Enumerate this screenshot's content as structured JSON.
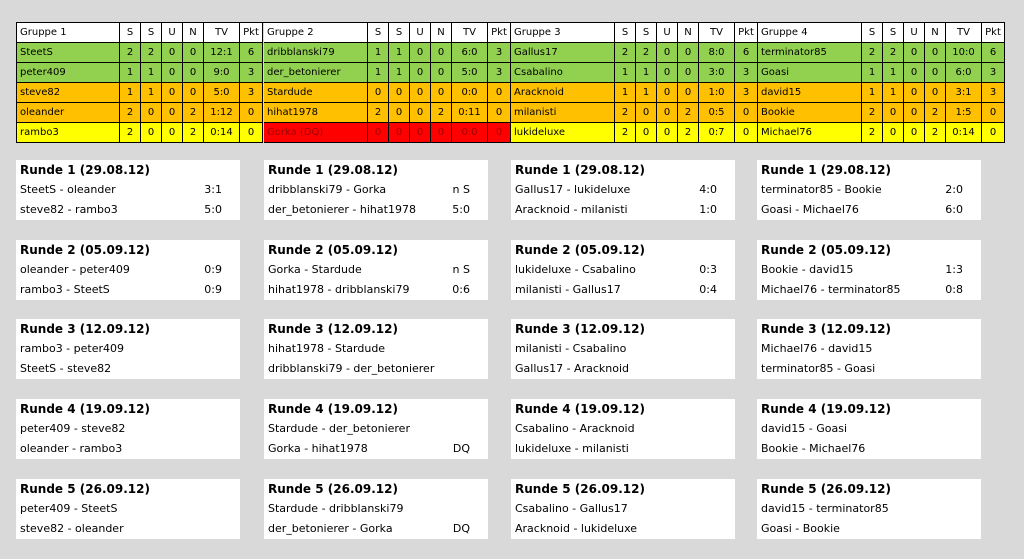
{
  "groups": [
    {
      "header": [
        "Gruppe 1",
        "S",
        "S",
        "U",
        "N",
        "TV",
        "Pkt"
      ],
      "rows": [
        {
          "color": "#92d050",
          "cells": [
            "SteetS",
            2,
            2,
            0,
            0,
            "12:1",
            6
          ]
        },
        {
          "color": "#92d050",
          "cells": [
            "peter409",
            1,
            1,
            0,
            0,
            "9:0",
            3
          ]
        },
        {
          "color": "#ffc000",
          "cells": [
            "steve82",
            1,
            1,
            0,
            0,
            "5:0",
            3
          ]
        },
        {
          "color": "#ffc000",
          "cells": [
            "oleander",
            2,
            0,
            0,
            2,
            "1:12",
            0
          ]
        },
        {
          "color": "#ffff00",
          "cells": [
            "rambo3",
            2,
            0,
            0,
            2,
            "0:14",
            0
          ]
        }
      ],
      "rounds": [
        {
          "title": "Runde 1 (29.08.12)",
          "matches": [
            [
              "SteetS - oleander",
              "3:1"
            ],
            [
              "steve82 - rambo3",
              "5:0"
            ]
          ]
        },
        {
          "title": "Runde 2 (05.09.12)",
          "matches": [
            [
              "oleander - peter409",
              "0:9"
            ],
            [
              "rambo3 - SteetS",
              "0:9"
            ]
          ]
        },
        {
          "title": "Runde 3 (12.09.12)",
          "matches": [
            [
              "rambo3 - peter409"
            ],
            [
              "SteetS - steve82"
            ]
          ]
        },
        {
          "title": "Runde 4 (19.09.12)",
          "matches": [
            [
              "peter409 - steve82"
            ],
            [
              "oleander - rambo3"
            ]
          ]
        },
        {
          "title": "Runde 5 (26.09.12)",
          "matches": [
            [
              "peter409 - SteetS"
            ],
            [
              "steve82 - oleander"
            ]
          ]
        }
      ]
    },
    {
      "header": [
        "Gruppe 2",
        "S",
        "S",
        "U",
        "N",
        "TV",
        "Pkt"
      ],
      "rows": [
        {
          "color": "#92d050",
          "cells": [
            "dribblanski79",
            1,
            1,
            0,
            0,
            "6:0",
            3
          ]
        },
        {
          "color": "#92d050",
          "cells": [
            "der_betonierer",
            1,
            1,
            0,
            0,
            "5:0",
            3
          ]
        },
        {
          "color": "#ffc000",
          "cells": [
            "Stardude",
            0,
            0,
            0,
            0,
            "0:0",
            0
          ]
        },
        {
          "color": "#ffc000",
          "cells": [
            "hihat1978",
            2,
            0,
            0,
            2,
            "0:11",
            0
          ]
        },
        {
          "color": "#ff0000",
          "cells": [
            "Gorka (DQ)",
            0,
            0,
            0,
            0,
            "0:0",
            0
          ]
        }
      ],
      "rounds": [
        {
          "title": "Runde 1 (29.08.12)",
          "matches": [
            [
              "dribblanski79 - Gorka",
              "n S"
            ],
            [
              "der_betonierer - hihat1978",
              "5:0"
            ]
          ]
        },
        {
          "title": "Runde 2 (05.09.12)",
          "matches": [
            [
              "Gorka - Stardude",
              "n S"
            ],
            [
              "hihat1978 - dribblanski79",
              "0:6"
            ]
          ]
        },
        {
          "title": "Runde 3 (12.09.12)",
          "matches": [
            [
              "hihat1978 - Stardude"
            ],
            [
              "dribblanski79 - der_betonierer"
            ]
          ]
        },
        {
          "title": "Runde 4 (19.09.12)",
          "matches": [
            [
              "Stardude - der_betonierer"
            ],
            [
              "Gorka - hihat1978",
              "DQ"
            ]
          ]
        },
        {
          "title": "Runde 5 (26.09.12)",
          "matches": [
            [
              "Stardude - dribblanski79"
            ],
            [
              "der_betonierer - Gorka",
              "DQ"
            ]
          ]
        }
      ]
    },
    {
      "header": [
        "Gruppe 3",
        "S",
        "S",
        "U",
        "N",
        "TV",
        "Pkt"
      ],
      "rows": [
        {
          "color": "#92d050",
          "cells": [
            "Gallus17",
            2,
            2,
            0,
            0,
            "8:0",
            6
          ]
        },
        {
          "color": "#92d050",
          "cells": [
            "Csabalino",
            1,
            1,
            0,
            0,
            "3:0",
            3
          ]
        },
        {
          "color": "#ffc000",
          "cells": [
            "Aracknoid",
            1,
            1,
            0,
            0,
            "1:0",
            3
          ]
        },
        {
          "color": "#ffc000",
          "cells": [
            "milanisti",
            2,
            0,
            0,
            2,
            "0:5",
            0
          ]
        },
        {
          "color": "#ffff00",
          "cells": [
            "lukideluxe",
            2,
            0,
            0,
            2,
            "0:7",
            0
          ]
        }
      ],
      "rounds": [
        {
          "title": "Runde 1 (29.08.12)",
          "matches": [
            [
              "Gallus17 - lukideluxe",
              "4:0"
            ],
            [
              "Aracknoid - milanisti",
              "1:0"
            ]
          ]
        },
        {
          "title": "Runde 2 (05.09.12)",
          "matches": [
            [
              "lukideluxe - Csabalino",
              "0:3"
            ],
            [
              "milanisti - Gallus17",
              "0:4"
            ]
          ]
        },
        {
          "title": "Runde 3 (12.09.12)",
          "matches": [
            [
              "milanisti - Csabalino"
            ],
            [
              "Gallus17 - Aracknoid"
            ]
          ]
        },
        {
          "title": "Runde 4 (19.09.12)",
          "matches": [
            [
              "Csabalino - Aracknoid"
            ],
            [
              "lukideluxe - milanisti"
            ]
          ]
        },
        {
          "title": "Runde 5 (26.09.12)",
          "matches": [
            [
              "Csabalino - Gallus17"
            ],
            [
              "Aracknoid - lukideluxe"
            ]
          ]
        }
      ]
    },
    {
      "header": [
        "Gruppe 4",
        "S",
        "S",
        "U",
        "N",
        "TV",
        "Pkt"
      ],
      "rows": [
        {
          "color": "#92d050",
          "cells": [
            "terminator85",
            2,
            2,
            0,
            0,
            "10:0",
            6
          ]
        },
        {
          "color": "#92d050",
          "cells": [
            "Goasi",
            1,
            1,
            0,
            0,
            "6:0",
            3
          ]
        },
        {
          "color": "#ffc000",
          "cells": [
            "david15",
            1,
            1,
            0,
            0,
            "3:1",
            3
          ]
        },
        {
          "color": "#ffc000",
          "cells": [
            "Bookie",
            2,
            0,
            0,
            2,
            "1:5",
            0
          ]
        },
        {
          "color": "#ffff00",
          "cells": [
            "Michael76",
            2,
            0,
            0,
            2,
            "0:14",
            0
          ]
        }
      ],
      "rounds": [
        {
          "title": "Runde 1 (29.08.12)",
          "matches": [
            [
              "terminator85 - Bookie",
              "2:0"
            ],
            [
              "Goasi - Michael76",
              "6:0"
            ]
          ]
        },
        {
          "title": "Runde 2 (05.09.12)",
          "matches": [
            [
              "Bookie - david15",
              "1:3"
            ],
            [
              "Michael76 - terminator85",
              "0:8"
            ]
          ]
        },
        {
          "title": "Runde 3 (12.09.12)",
          "matches": [
            [
              "Michael76 - david15"
            ],
            [
              "terminator85 - Goasi"
            ]
          ]
        },
        {
          "title": "Runde 4 (19.09.12)",
          "matches": [
            [
              "david15 - Goasi"
            ],
            [
              "Bookie - Michael76"
            ]
          ]
        },
        {
          "title": "Runde 5 (26.09.12)",
          "matches": [
            [
              "david15 - terminator85"
            ],
            [
              "Goasi - Bookie"
            ]
          ]
        }
      ]
    }
  ]
}
